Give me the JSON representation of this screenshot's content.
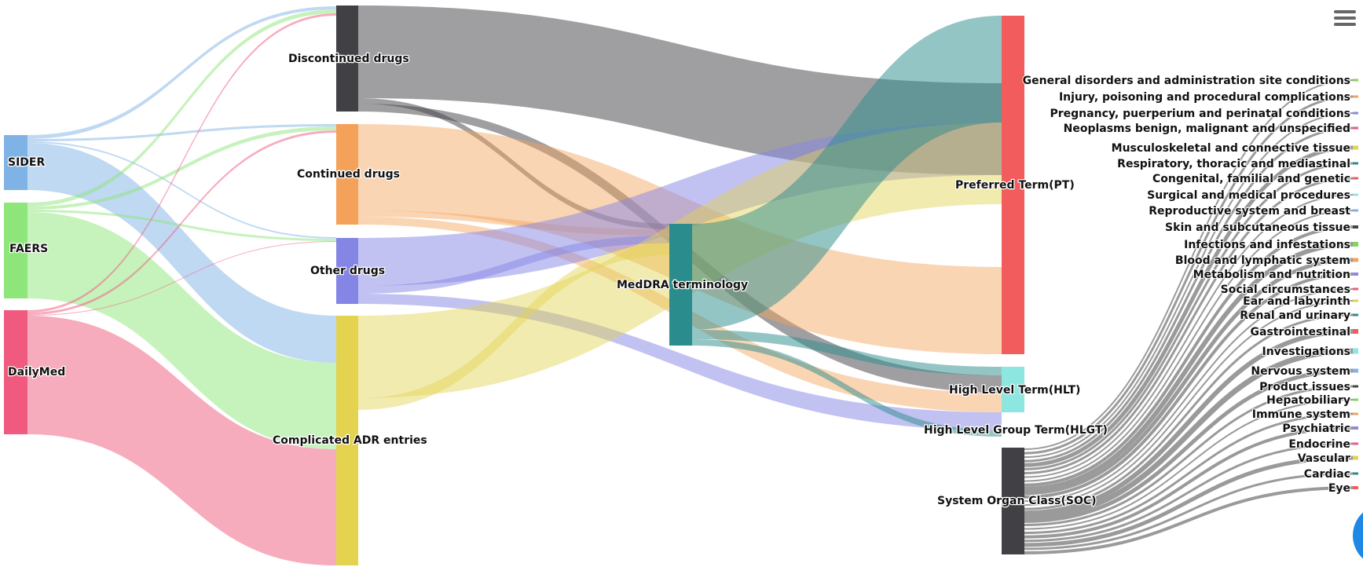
{
  "nodes": {
    "sider": "SIDER",
    "faers": "FAERS",
    "dailymed": "DailyMed",
    "discontinued": "Discontinued drugs",
    "continued": "Continued drugs",
    "other": "Other drugs",
    "complicated": "Complicated ADR entries",
    "meddra": "MedDRA terminology",
    "pt": "Preferred Term(PT)",
    "hlt": "High Level Term(HLT)",
    "hlgt": "High Level Group Term(HLGT)",
    "soc": "System Organ Class(SOC)"
  },
  "soc_categories": [
    {
      "name": "General disorders and administration site conditions",
      "color": "#7ed957"
    },
    {
      "name": "Injury, poisoning and procedural complications",
      "color": "#f4a259"
    },
    {
      "name": "Pregnancy, puerperium and perinatal conditions",
      "color": "#8a8ae6"
    },
    {
      "name": "Neoplasms benign, malignant and unspecified",
      "color": "#f05a7e"
    },
    {
      "name": "Musculoskeletal and connective tissue",
      "color": "#e3d34f"
    },
    {
      "name": "Respiratory, thoracic and mediastinal",
      "color": "#2a8c8c"
    },
    {
      "name": "Congenital, familial and genetic",
      "color": "#f25c5c"
    },
    {
      "name": "Surgical and medical procedures",
      "color": "#8ee6e0"
    },
    {
      "name": "Reproductive system and breast",
      "color": "#7fb3e6"
    },
    {
      "name": "Skin and subcutaneous tissue",
      "color": "#444444"
    },
    {
      "name": "Infections and infestations",
      "color": "#7ed957"
    },
    {
      "name": "Blood and lymphatic system",
      "color": "#f4a259"
    },
    {
      "name": "Metabolism and nutrition",
      "color": "#8a8ae6"
    },
    {
      "name": "Social circumstances",
      "color": "#f05a7e"
    },
    {
      "name": "Ear and labyrinth",
      "color": "#e3d34f"
    },
    {
      "name": "Renal and urinary",
      "color": "#2a8c8c"
    },
    {
      "name": "Gastrointestinal",
      "color": "#f25c5c"
    },
    {
      "name": "Investigations",
      "color": "#8ee6e0"
    },
    {
      "name": "Nervous system",
      "color": "#7fb3e6"
    },
    {
      "name": "Product issues",
      "color": "#444444"
    },
    {
      "name": "Hepatobiliary",
      "color": "#7ed957"
    },
    {
      "name": "Immune system",
      "color": "#f4a259"
    },
    {
      "name": "Psychiatric",
      "color": "#8a8ae6"
    },
    {
      "name": "Endocrine",
      "color": "#f05a7e"
    },
    {
      "name": "Vascular",
      "color": "#e3d34f"
    },
    {
      "name": "Cardiac",
      "color": "#2a8c8c"
    },
    {
      "name": "Eye",
      "color": "#f25c5c"
    }
  ],
  "colors": {
    "sider": "#7fb3e6",
    "faers": "#8ee67a",
    "dailymed": "#f05a7e",
    "discontinued": "#404045",
    "continued": "#f4a259",
    "other": "#8585e6",
    "complicated": "#e3d34f",
    "meddra": "#2a8c8c",
    "pt": "#f25c5c",
    "hlt": "#8ee6e0",
    "soc": "#404045"
  },
  "icons": {
    "menu": "hamburger-menu-icon"
  }
}
